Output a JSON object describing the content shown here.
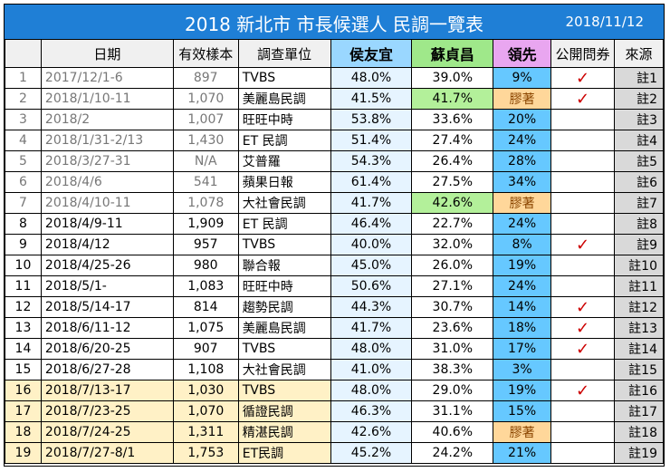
{
  "title": "2018  新北市 市長候選人 民調一覽表",
  "date": "2018/11/12",
  "headers": {
    "date": "日期",
    "sample": "有效樣本",
    "unit": "調查單位",
    "hou": "侯友宜",
    "su": "蘇貞昌",
    "lead": "領先",
    "public": "公開問券",
    "source": "來源"
  },
  "colors": {
    "title_bg": "#1f7fd6",
    "hou_header": "#9ad7ff",
    "su_header": "#9fe88a",
    "lead_header": "#e9a6f0",
    "lead_cell": "#66c8ff",
    "close_cell": "#ffd79a",
    "check": "#cc0000"
  },
  "check_icon": "checkmark-icon",
  "rows": [
    {
      "n": "1",
      "date": "2017/12/1-6",
      "sample": "897",
      "unit": "TVBS",
      "hou": "48.0%",
      "su": "39.0%",
      "lead": "9%",
      "check": "✓",
      "src": "註1",
      "style": "grey"
    },
    {
      "n": "2",
      "date": "2018/1/10-11",
      "sample": "1,070",
      "unit": "美麗島民調",
      "hou": "41.5%",
      "su": "41.7%",
      "lead": "膠著",
      "check": "✓",
      "src": "註2",
      "style": "grey",
      "su_green": true,
      "close": true
    },
    {
      "n": "3",
      "date": "2018/2",
      "sample": "1,007",
      "unit": "旺旺中時",
      "hou": "53.8%",
      "su": "33.6%",
      "lead": "20%",
      "check": "",
      "src": "註3",
      "style": "grey"
    },
    {
      "n": "4",
      "date": "2018/1/31-2/13",
      "sample": "1,430",
      "unit": "ET 民調",
      "hou": "51.4%",
      "su": "27.4%",
      "lead": "24%",
      "check": "",
      "src": "註4",
      "style": "grey"
    },
    {
      "n": "5",
      "date": "2018/3/27-31",
      "sample": "N/A",
      "unit": "艾普羅",
      "hou": "54.3%",
      "su": "26.4%",
      "lead": "28%",
      "check": "",
      "src": "註5",
      "style": "grey"
    },
    {
      "n": "6",
      "date": "2018/4/6",
      "sample": "541",
      "unit": "蘋果日報",
      "hou": "61.4%",
      "su": "27.5%",
      "lead": "34%",
      "check": "",
      "src": "註6",
      "style": "grey"
    },
    {
      "n": "7",
      "date": "2018/4/10-11",
      "sample": "1,078",
      "unit": "大社會民調",
      "hou": "41.7%",
      "su": "42.6%",
      "lead": "膠著",
      "check": "",
      "src": "註7",
      "style": "grey",
      "su_green": true,
      "close": true
    },
    {
      "n": "8",
      "date": "2018/4/9-11",
      "sample": "1,909",
      "unit": "ET 民調",
      "hou": "46.4%",
      "su": "22.7%",
      "lead": "24%",
      "check": "",
      "src": "註8",
      "style": ""
    },
    {
      "n": "9",
      "date": "2018/4/12",
      "sample": "957",
      "unit": "TVBS",
      "hou": "40.0%",
      "su": "32.0%",
      "lead": "8%",
      "check": "✓",
      "src": "註9",
      "style": ""
    },
    {
      "n": "10",
      "date": "2018/4/25-26",
      "sample": "980",
      "unit": "聯合報",
      "hou": "45.0%",
      "su": "26.0%",
      "lead": "19%",
      "check": "",
      "src": "註10",
      "style": ""
    },
    {
      "n": "11",
      "date": "2018/5/1-",
      "sample": "1,083",
      "unit": "旺旺中時",
      "hou": "50.6%",
      "su": "27.1%",
      "lead": "24%",
      "check": "",
      "src": "註11",
      "style": ""
    },
    {
      "n": "12",
      "date": "2018/5/14-17",
      "sample": "814",
      "unit": "趨勢民調",
      "hou": "44.3%",
      "su": "30.7%",
      "lead": "14%",
      "check": "✓",
      "src": "註12",
      "style": ""
    },
    {
      "n": "13",
      "date": "2018/6/11-12",
      "sample": "1,075",
      "unit": "美麗島民調",
      "hou": "41.7%",
      "su": "23.6%",
      "lead": "18%",
      "check": "✓",
      "src": "註13",
      "style": ""
    },
    {
      "n": "14",
      "date": "2018/6/20-25",
      "sample": "907",
      "unit": "TVBS",
      "hou": "48.0%",
      "su": "31.0%",
      "lead": "17%",
      "check": "✓",
      "src": "註14",
      "style": ""
    },
    {
      "n": "15",
      "date": "2018/6/27-28",
      "sample": "1,108",
      "unit": "大社會民調",
      "hou": "41.0%",
      "su": "38.3%",
      "lead": "3%",
      "check": "",
      "src": "註15",
      "style": ""
    },
    {
      "n": "16",
      "date": "2018/7/13-17",
      "sample": "1,030",
      "unit": "TVBS",
      "hou": "48.0%",
      "su": "29.0%",
      "lead": "19%",
      "check": "✓",
      "src": "註16",
      "style": "summer"
    },
    {
      "n": "17",
      "date": "2018/7/23-25",
      "sample": "1,070",
      "unit": "循證民調",
      "hou": "46.3%",
      "su": "31.1%",
      "lead": "15%",
      "check": "",
      "src": "註17",
      "style": "summer"
    },
    {
      "n": "18",
      "date": "2018/7/24-25",
      "sample": "1,311",
      "unit": "精湛民調",
      "hou": "42.6%",
      "su": "40.6%",
      "lead": "膠著",
      "check": "",
      "src": "註18",
      "style": "summer",
      "close": true
    },
    {
      "n": "19",
      "date": "2018/7/27-8/1",
      "sample": "1,753",
      "unit": "ET民調",
      "hou": "45.2%",
      "su": "24.2%",
      "lead": "21%",
      "check": "",
      "src": "註19",
      "style": "summer"
    }
  ]
}
